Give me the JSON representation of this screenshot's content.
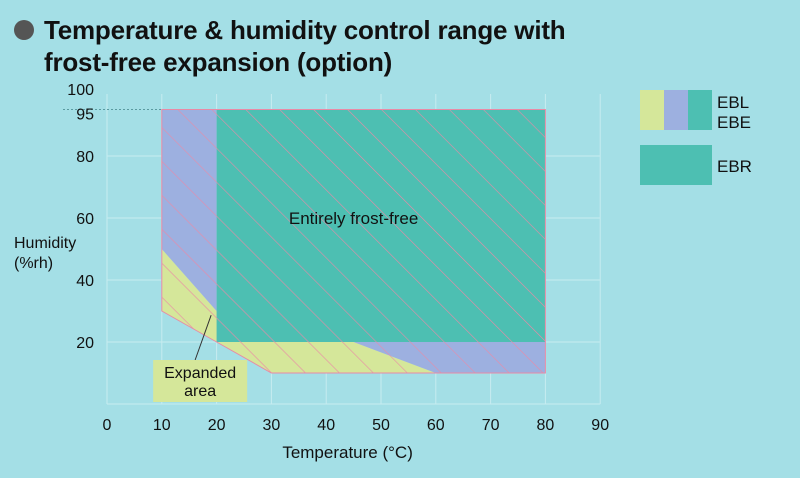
{
  "title_lines": [
    "Temperature & humidity control range with",
    "frost-free expansion (option)"
  ],
  "colors": {
    "background": "#a4dfe6",
    "ebl_yellow": "#d5e79a",
    "ebe_blue": "#9db0e0",
    "ebr_teal": "#4dbfb2",
    "hatch_pink": "#e98aa6",
    "grid": "#c7ecf0"
  },
  "legend": [
    {
      "label_lines": [
        "EBL",
        "EBE"
      ],
      "swatches": [
        "ebl_yellow",
        "ebe_blue",
        "ebr_teal"
      ]
    },
    {
      "label_lines": [
        "EBR"
      ],
      "swatches": [
        "ebr_teal"
      ]
    }
  ],
  "chart_data": {
    "type": "area",
    "xlabel": "Temperature (°C)",
    "ylabel_lines": [
      "Humidity",
      "(%rh)"
    ],
    "xlim": [
      0,
      90
    ],
    "ylim": [
      0,
      100
    ],
    "x_ticks": [
      0,
      10,
      20,
      30,
      40,
      50,
      60,
      70,
      80,
      90
    ],
    "y_ticks": [
      20,
      40,
      60,
      80,
      95,
      100
    ],
    "reference_line_y": 95,
    "regions": [
      {
        "id": "expanded",
        "color": "ebl_yellow",
        "polygon": [
          [
            10,
            50
          ],
          [
            10,
            30
          ],
          [
            20,
            20
          ],
          [
            30,
            10
          ],
          [
            60,
            10
          ],
          [
            45,
            20
          ],
          [
            20,
            30
          ]
        ]
      },
      {
        "id": "ebe",
        "color": "ebe_blue",
        "polygon": [
          [
            10,
            95
          ],
          [
            20,
            95
          ],
          [
            20,
            30
          ],
          [
            45,
            20
          ],
          [
            80,
            20
          ],
          [
            80,
            10
          ],
          [
            60,
            10
          ],
          [
            45,
            20
          ],
          [
            20,
            30
          ],
          [
            10,
            50
          ]
        ]
      },
      {
        "id": "ebr",
        "color": "ebr_teal",
        "polygon": [
          [
            20,
            95
          ],
          [
            80,
            95
          ],
          [
            80,
            20
          ],
          [
            20,
            20
          ]
        ]
      }
    ],
    "hatched_outline": [
      [
        10,
        95
      ],
      [
        80,
        95
      ],
      [
        80,
        10
      ],
      [
        30,
        10
      ],
      [
        20,
        20
      ],
      [
        10,
        30
      ]
    ],
    "annotations": [
      {
        "text": "Entirely frost-free",
        "x": 45,
        "y": 60
      },
      {
        "text_lines": [
          "Expanded",
          "area"
        ],
        "x": 17,
        "y": 10,
        "pointer_to": [
          19,
          28
        ]
      }
    ]
  }
}
